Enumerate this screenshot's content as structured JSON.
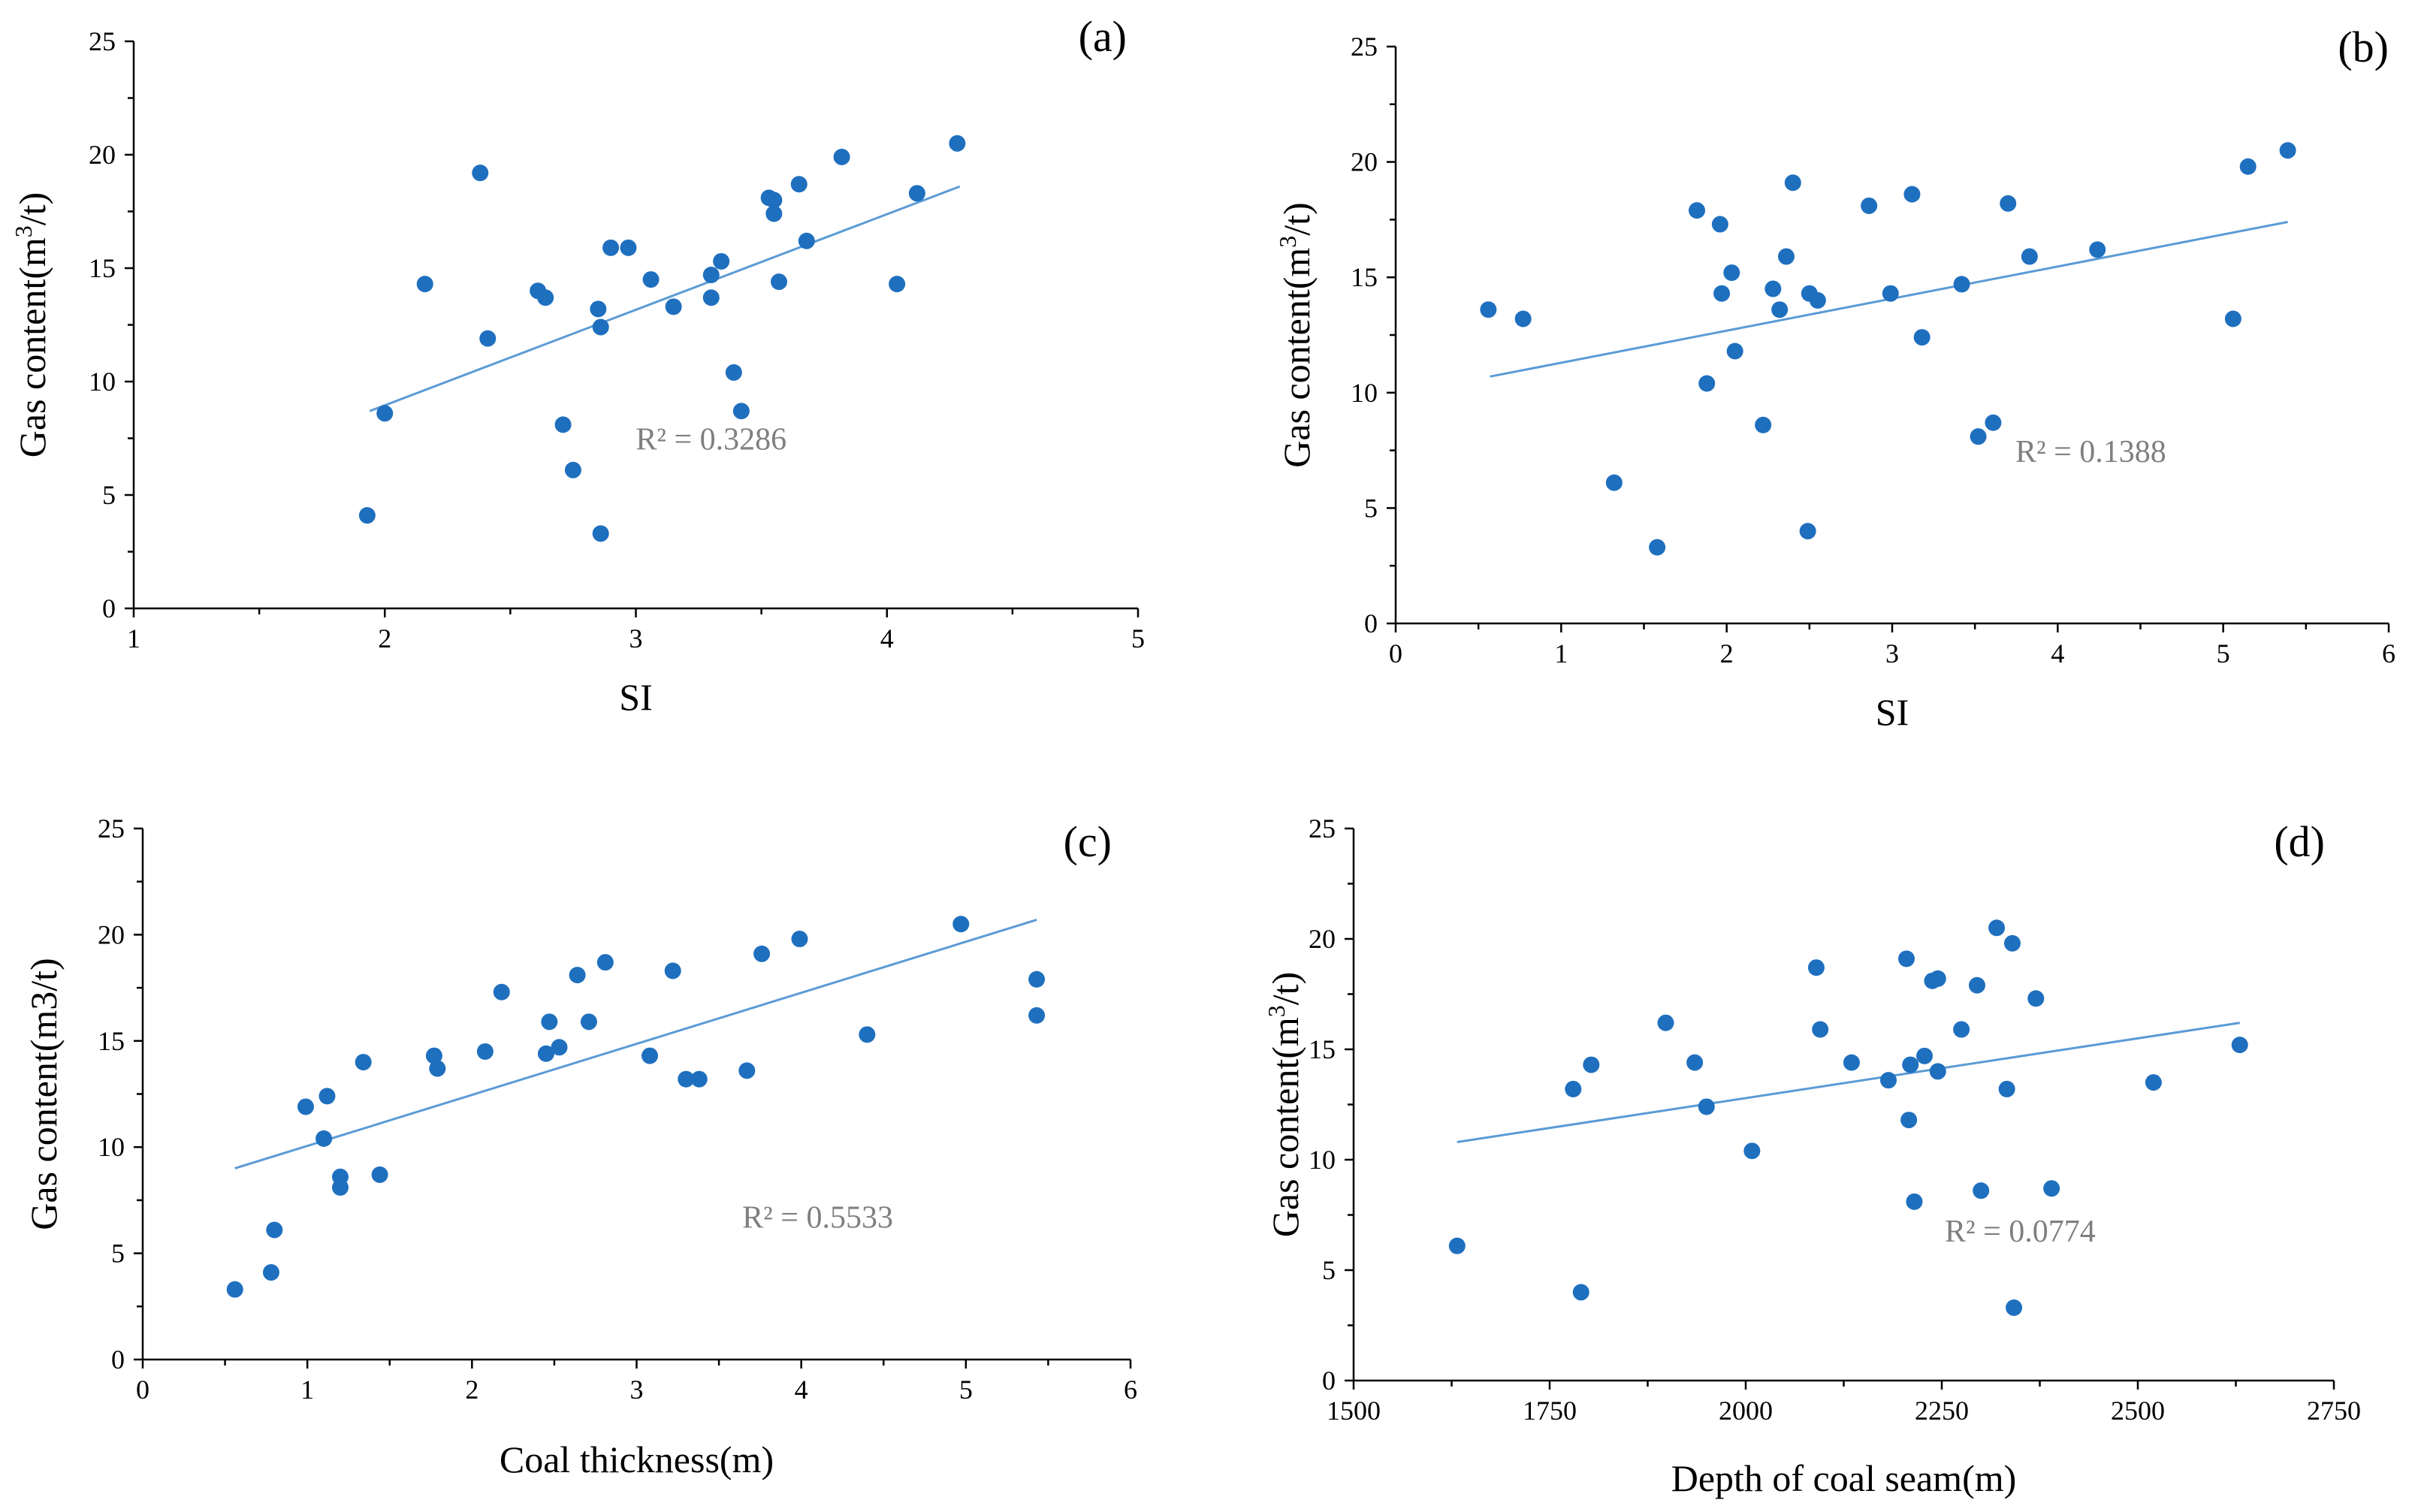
{
  "colors": {
    "point": "#1f6fbf",
    "trend": "#5b9bd5",
    "r2": "#7f7f7f"
  },
  "chart_data": [
    {
      "type": "scatter",
      "panel_label": "(a)",
      "xlabel": "SI",
      "ylabel_pre": "Gas content(m",
      "ylabel_sup": "3",
      "ylabel_post": "/t)",
      "xlim": [
        1,
        5
      ],
      "ylim": [
        0,
        25
      ],
      "xticks": [
        1,
        2,
        3,
        4,
        5
      ],
      "yticks": [
        0,
        5,
        10,
        15,
        20,
        25
      ],
      "trendline": {
        "x": [
          1.94,
          4.29
        ],
        "y": [
          8.7,
          18.6
        ]
      },
      "r2": "R² = 0.3286",
      "r2_pos": [
        3.3,
        7
      ],
      "points": [
        [
          1.93,
          4.1
        ],
        [
          2.0,
          8.6
        ],
        [
          2.16,
          14.3
        ],
        [
          2.38,
          19.2
        ],
        [
          2.41,
          11.9
        ],
        [
          2.61,
          14.0
        ],
        [
          2.64,
          13.7
        ],
        [
          2.71,
          8.1
        ],
        [
          2.75,
          6.1
        ],
        [
          2.85,
          13.2
        ],
        [
          2.86,
          12.4
        ],
        [
          2.86,
          3.3
        ],
        [
          2.9,
          15.9
        ],
        [
          2.97,
          15.9
        ],
        [
          3.06,
          14.5
        ],
        [
          3.15,
          13.3
        ],
        [
          3.3,
          13.7
        ],
        [
          3.3,
          14.7
        ],
        [
          3.34,
          15.3
        ],
        [
          3.39,
          10.4
        ],
        [
          3.42,
          8.7
        ],
        [
          3.53,
          18.1
        ],
        [
          3.55,
          17.4
        ],
        [
          3.55,
          18.0
        ],
        [
          3.57,
          14.4
        ],
        [
          3.65,
          18.7
        ],
        [
          3.68,
          16.2
        ],
        [
          3.82,
          19.9
        ],
        [
          4.04,
          14.3
        ],
        [
          4.12,
          18.3
        ],
        [
          4.28,
          20.5
        ]
      ]
    },
    {
      "type": "scatter",
      "panel_label": "(b)",
      "xlabel": "SI",
      "ylabel_pre": "Gas content(m",
      "ylabel_sup": "3",
      "ylabel_post": "/t)",
      "xlim": [
        0,
        6
      ],
      "ylim": [
        0,
        25
      ],
      "xticks": [
        0,
        1,
        2,
        3,
        4,
        5,
        6
      ],
      "yticks": [
        0,
        5,
        10,
        15,
        20,
        25
      ],
      "trendline": {
        "x": [
          0.57,
          5.39
        ],
        "y": [
          10.7,
          17.4
        ]
      },
      "r2": "R² = 0.1388",
      "r2_pos": [
        4.2,
        7
      ],
      "points": [
        [
          0.56,
          13.6
        ],
        [
          0.77,
          13.2
        ],
        [
          1.32,
          6.1
        ],
        [
          1.58,
          3.3
        ],
        [
          1.82,
          17.9
        ],
        [
          1.88,
          10.4
        ],
        [
          1.96,
          17.3
        ],
        [
          1.97,
          14.3
        ],
        [
          2.03,
          15.2
        ],
        [
          2.05,
          11.8
        ],
        [
          2.22,
          8.6
        ],
        [
          2.28,
          14.5
        ],
        [
          2.32,
          13.6
        ],
        [
          2.36,
          15.9
        ],
        [
          2.4,
          19.1
        ],
        [
          2.49,
          4.0
        ],
        [
          2.5,
          14.3
        ],
        [
          2.55,
          14.0
        ],
        [
          2.86,
          18.1
        ],
        [
          2.99,
          14.3
        ],
        [
          3.12,
          18.6
        ],
        [
          3.18,
          12.4
        ],
        [
          3.42,
          14.7
        ],
        [
          3.52,
          8.1
        ],
        [
          3.61,
          8.7
        ],
        [
          3.7,
          18.2
        ],
        [
          3.83,
          15.9
        ],
        [
          4.24,
          16.2
        ],
        [
          5.06,
          13.2
        ],
        [
          5.15,
          19.8
        ],
        [
          5.39,
          20.5
        ]
      ]
    },
    {
      "type": "scatter",
      "panel_label": "(c)",
      "xlabel": "Coal thickness(m)",
      "ylabel_pre": "Gas content(m3/t)",
      "ylabel_sup": "",
      "ylabel_post": "",
      "xlim": [
        0,
        6
      ],
      "ylim": [
        0,
        25
      ],
      "xticks": [
        0,
        1,
        2,
        3,
        4,
        5,
        6
      ],
      "yticks": [
        0,
        5,
        10,
        15,
        20,
        25
      ],
      "trendline": {
        "x": [
          0.56,
          5.43
        ],
        "y": [
          9.0,
          20.7
        ]
      },
      "r2": "R² = 0.5533",
      "r2_pos": [
        4.1,
        6.2
      ],
      "points": [
        [
          0.56,
          3.3
        ],
        [
          0.78,
          4.1
        ],
        [
          0.8,
          6.1
        ],
        [
          0.99,
          11.9
        ],
        [
          1.1,
          10.4
        ],
        [
          1.12,
          12.4
        ],
        [
          1.2,
          8.1
        ],
        [
          1.2,
          8.6
        ],
        [
          1.34,
          14.0
        ],
        [
          1.44,
          8.7
        ],
        [
          1.77,
          14.3
        ],
        [
          1.79,
          13.7
        ],
        [
          2.08,
          14.5
        ],
        [
          2.18,
          17.3
        ],
        [
          2.45,
          14.4
        ],
        [
          2.47,
          15.9
        ],
        [
          2.53,
          14.7
        ],
        [
          2.64,
          18.1
        ],
        [
          2.71,
          15.9
        ],
        [
          2.81,
          18.7
        ],
        [
          3.08,
          14.3
        ],
        [
          3.22,
          18.3
        ],
        [
          3.3,
          13.2
        ],
        [
          3.38,
          13.2
        ],
        [
          3.67,
          13.6
        ],
        [
          3.76,
          19.1
        ],
        [
          3.99,
          19.8
        ],
        [
          4.4,
          15.3
        ],
        [
          4.97,
          20.5
        ],
        [
          5.43,
          17.9
        ],
        [
          5.43,
          16.2
        ]
      ]
    },
    {
      "type": "scatter",
      "panel_label": "(d)",
      "xlabel": "Depth of coal seam(m)",
      "ylabel_pre": "Gas content(m",
      "ylabel_sup": "3",
      "ylabel_post": "/t)",
      "xlim": [
        1500,
        2750
      ],
      "ylim": [
        0,
        25
      ],
      "xticks": [
        1500,
        1750,
        2000,
        2250,
        2500,
        2750
      ],
      "yticks": [
        0,
        5,
        10,
        15,
        20,
        25
      ],
      "trendline": {
        "x": [
          1632,
          2630
        ],
        "y": [
          10.8,
          16.2
        ]
      },
      "r2": "R² = 0.0774",
      "r2_pos": [
        2350,
        6.3
      ],
      "points": [
        [
          1632,
          6.1
        ],
        [
          1780,
          13.2
        ],
        [
          1790,
          4.0
        ],
        [
          1803,
          14.3
        ],
        [
          1898,
          16.2
        ],
        [
          1935,
          14.4
        ],
        [
          1950,
          12.4
        ],
        [
          2008,
          10.4
        ],
        [
          2090,
          18.7
        ],
        [
          2095,
          15.9
        ],
        [
          2135,
          14.4
        ],
        [
          2182,
          13.6
        ],
        [
          2205,
          19.1
        ],
        [
          2208,
          11.8
        ],
        [
          2210,
          14.3
        ],
        [
          2215,
          8.1
        ],
        [
          2228,
          14.7
        ],
        [
          2238,
          18.1
        ],
        [
          2245,
          18.2
        ],
        [
          2245,
          14.0
        ],
        [
          2275,
          15.9
        ],
        [
          2295,
          17.9
        ],
        [
          2300,
          8.6
        ],
        [
          2320,
          20.5
        ],
        [
          2333,
          13.2
        ],
        [
          2340,
          19.8
        ],
        [
          2342,
          3.3
        ],
        [
          2370,
          17.3
        ],
        [
          2390,
          8.7
        ],
        [
          2520,
          13.5
        ],
        [
          2630,
          15.2
        ]
      ]
    }
  ]
}
